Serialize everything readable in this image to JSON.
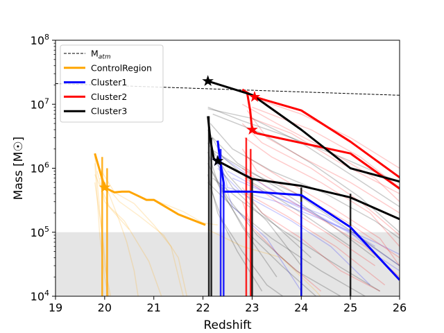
{
  "chart_data": {
    "type": "line",
    "title": "",
    "xlabel": "Redshift",
    "ylabel": "Mass [M☉]",
    "xlim": [
      19,
      26
    ],
    "ylim": [
      10000,
      100000000
    ],
    "yscale": "log",
    "grid": false,
    "legend_position": "top-left",
    "x_ticks": [
      19,
      20,
      21,
      22,
      23,
      24,
      25,
      26
    ],
    "x_tick_labels": [
      "19",
      "20",
      "21",
      "22",
      "23",
      "24",
      "25",
      "26"
    ],
    "y_ticks": [
      10000,
      100000,
      1000000,
      10000000,
      100000000
    ],
    "y_tick_labels": [
      {
        "base": "10",
        "exp": "4"
      },
      {
        "base": "10",
        "exp": "5"
      },
      {
        "base": "10",
        "exp": "6"
      },
      {
        "base": "10",
        "exp": "7"
      },
      {
        "base": "10",
        "exp": "8"
      }
    ],
    "shaded_region": {
      "x": [
        19,
        26
      ],
      "y": [
        10000,
        100000
      ],
      "color": "#e5e5e5"
    },
    "m_atm": {
      "name": "M",
      "subscript": "atm",
      "style": "dashed",
      "color": "#000000",
      "x": [
        19,
        26
      ],
      "y": [
        21000000,
        13800000
      ]
    },
    "groups": [
      {
        "name": "ControlRegion",
        "color": "#FFA500",
        "main": {
          "x": [
            19.8,
            20.0,
            20.2,
            20.35,
            20.5,
            20.65,
            20.85,
            21.0,
            21.5,
            22.05
          ],
          "y": [
            1700000,
            500000,
            420000,
            430000,
            430000,
            380000,
            320000,
            320000,
            190000,
            130000
          ]
        },
        "star": {
          "x": 20.0,
          "y": 500000
        },
        "faint": [
          {
            "x": [
              19.8,
              20.0,
              20.1,
              20.15
            ],
            "y": [
              1600000,
              30000,
              12000,
              8000
            ]
          },
          {
            "x": [
              19.8,
              19.9,
              20.0,
              20.1
            ],
            "y": [
              1200000,
              90000,
              20000,
              8000
            ]
          },
          {
            "x": [
              19.85,
              20.0,
              20.2,
              20.5
            ],
            "y": [
              900000,
              300000,
              200000,
              110000
            ]
          },
          {
            "x": [
              19.8,
              20.3,
              20.45,
              20.6,
              20.7
            ],
            "y": [
              1500000,
              150000,
              70000,
              25000,
              8000
            ]
          },
          {
            "x": [
              19.9,
              20.2,
              20.6,
              21.0,
              21.35,
              21.6
            ],
            "y": [
              1000000,
              420000,
              280000,
              130000,
              60000,
              10000
            ]
          },
          {
            "x": [
              19.8,
              20.1,
              20.4,
              20.9,
              21.2
            ],
            "y": [
              800000,
              250000,
              150000,
              35000,
              8000
            ]
          },
          {
            "x": [
              19.9,
              20.3,
              20.7,
              21.2,
              21.5,
              21.7
            ],
            "y": [
              700000,
              300000,
              180000,
              90000,
              40000,
              8000
            ]
          },
          {
            "x": [
              19.8,
              19.95,
              20.1
            ],
            "y": [
              600000,
              100000,
              8000
            ]
          },
          {
            "x": [
              21.0,
              21.6,
              22.0,
              22.3
            ],
            "y": [
              320000,
              210000,
              140000,
              130000
            ]
          },
          {
            "x": [
              22.1,
              22.8,
              23.6,
              24.3,
              24.5
            ],
            "y": [
              110000,
              60000,
              40000,
              12000,
              8000
            ]
          }
        ]
      },
      {
        "name": "Cluster1",
        "color": "#0000FF",
        "main": {
          "x": [
            22.3,
            22.35,
            22.42,
            22.42,
            23.0,
            24.0,
            25.0,
            26.0
          ],
          "y": [
            2700000,
            1300000,
            600000,
            430000,
            430000,
            380000,
            120000,
            18000
          ]
        },
        "star": {
          "x": 22.3,
          "y": 1300000
        },
        "faint": [
          {
            "x": [
              22.3,
              22.5,
              23.5,
              24.5,
              25.5,
              26.0
            ],
            "y": [
              2000000,
              500000,
              300000,
              150000,
              70000,
              45000
            ]
          },
          {
            "x": [
              22.4,
              23.0,
              24.0,
              25.0,
              25.6,
              26.0
            ],
            "y": [
              1500000,
              700000,
              250000,
              100000,
              40000,
              25000
            ]
          },
          {
            "x": [
              22.3,
              22.8,
              23.8,
              24.6,
              25.4
            ],
            "y": [
              1000000,
              400000,
              150000,
              60000,
              15000
            ]
          },
          {
            "x": [
              22.5,
              23.2,
              24.2,
              25.2,
              26.0
            ],
            "y": [
              900000,
              450000,
              200000,
              80000,
              30000
            ]
          },
          {
            "x": [
              22.3,
              22.6,
              23.3,
              24.0
            ],
            "y": [
              1200000,
              250000,
              80000,
              12000
            ]
          },
          {
            "x": [
              22.6,
              23.5,
              24.5,
              25.5
            ],
            "y": [
              700000,
              350000,
              180000,
              60000
            ]
          }
        ]
      },
      {
        "name": "Cluster2",
        "color": "#FF0000",
        "main": {
          "x": [
            22.8,
            22.9,
            22.96,
            23.0,
            23.1,
            25.0,
            26.0
          ],
          "y": [
            17000000,
            15000000,
            8000000,
            4000000,
            3500000,
            1700000,
            480000
          ]
        },
        "star": {
          "x": 23.0,
          "y": 4000000
        },
        "main2": {
          "x": [
            22.85,
            23.05,
            24.0,
            25.0,
            26.0
          ],
          "y": [
            16000000,
            13000000,
            8000000,
            2600000,
            720000
          ]
        },
        "star2": {
          "x": 23.05,
          "y": 13000000
        },
        "faint": [
          {
            "x": [
              22.8,
              23.5,
              24.5,
              25.5,
              26.0
            ],
            "y": [
              10000000,
              5000000,
              2000000,
              700000,
              300000
            ]
          },
          {
            "x": [
              22.9,
              23.3,
              24.0,
              25.0,
              26.0
            ],
            "y": [
              8000000,
              3000000,
              1500000,
              600000,
              200000
            ]
          },
          {
            "x": [
              22.8,
              23.2,
              24.2,
              25.2,
              26.0
            ],
            "y": [
              5000000,
              2500000,
              1000000,
              300000,
              90000
            ]
          },
          {
            "x": [
              23.0,
              23.8,
              24.8,
              26.0
            ],
            "y": [
              6000000,
              3500000,
              1200000,
              400000
            ]
          },
          {
            "x": [
              22.85,
              23.4,
              24.4,
              25.4,
              26.0
            ],
            "y": [
              3000000,
              1500000,
              600000,
              200000,
              60000
            ]
          },
          {
            "x": [
              22.8,
              23.1,
              23.9,
              24.9,
              26.0
            ],
            "y": [
              2000000,
              900000,
              400000,
              150000,
              40000
            ]
          },
          {
            "x": [
              22.9,
              23.6,
              24.6,
              25.6,
              26.0
            ],
            "y": [
              1500000,
              700000,
              250000,
              80000,
              30000
            ]
          },
          {
            "x": [
              22.8,
              23.3,
              24.3,
              25.3,
              26.0
            ],
            "y": [
              1000000,
              500000,
              180000,
              60000,
              20000
            ]
          },
          {
            "x": [
              22.85,
              23.5,
              24.5,
              25.5
            ],
            "y": [
              700000,
              300000,
              100000,
              30000
            ]
          },
          {
            "x": [
              22.8,
              23.2,
              24.0,
              24.8,
              25.6
            ],
            "y": [
              500000,
              200000,
              80000,
              25000,
              12000
            ]
          },
          {
            "x": [
              22.9,
              23.7,
              24.7,
              25.7
            ],
            "y": [
              400000,
              180000,
              60000,
              15000
            ]
          },
          {
            "x": [
              22.8,
              23.0,
              23.6,
              24.4
            ],
            "y": [
              300000,
              120000,
              40000,
              12000
            ]
          },
          {
            "x": [
              23.1,
              24.0,
              25.0,
              26.0
            ],
            "y": [
              12000000,
              7000000,
              3000000,
              1000000
            ]
          },
          {
            "x": [
              23.0,
              24.2,
              25.2,
              26.0
            ],
            "y": [
              9000000,
              4000000,
              1500000,
              500000
            ]
          }
        ]
      },
      {
        "name": "Cluster3",
        "color": "#000000",
        "main": {
          "x": [
            22.1,
            22.15,
            22.22,
            22.3,
            23.0,
            24.0,
            25.0,
            26.0
          ],
          "y": [
            6500000,
            2800000,
            1400000,
            1300000,
            680000,
            530000,
            350000,
            160000
          ]
        },
        "star": {
          "x": 22.3,
          "y": 1300000
        },
        "main2": {
          "x": [
            22.1,
            23.0,
            24.0,
            25.0,
            26.0
          ],
          "y": [
            23000000,
            14000000,
            4000000,
            1000000,
            620000
          ]
        },
        "star2": {
          "x": 22.1,
          "y": 23000000
        },
        "faint": [
          {
            "x": [
              22.1,
              22.8,
              23.8,
              24.8,
              26.0
            ],
            "y": [
              9000000,
              5500000,
              3000000,
              1500000,
              600000
            ]
          },
          {
            "x": [
              22.15,
              22.6,
              23.4,
              24.5,
              25.5,
              26.0
            ],
            "y": [
              5000000,
              2000000,
              900000,
              400000,
              150000,
              80000
            ]
          },
          {
            "x": [
              22.1,
              22.4,
              23.0,
              24.0,
              25.0
            ],
            "y": [
              4000000,
              1500000,
              600000,
              200000,
              60000
            ]
          },
          {
            "x": [
              22.2,
              22.7,
              23.5,
              24.5,
              25.5
            ],
            "y": [
              3000000,
              1200000,
              500000,
              150000,
              40000
            ]
          },
          {
            "x": [
              22.1,
              22.5,
              23.2,
              24.2
            ],
            "y": [
              2500000,
              800000,
              200000,
              40000
            ]
          },
          {
            "x": [
              22.15,
              22.9,
              23.9,
              24.9,
              26.0
            ],
            "y": [
              2000000,
              900000,
              400000,
              120000,
              30000
            ]
          },
          {
            "x": [
              22.1,
              22.3,
              22.8,
              23.5
            ],
            "y": [
              1800000,
              600000,
              120000,
              20000
            ]
          },
          {
            "x": [
              22.2,
              22.6,
              23.3,
              24.0
            ],
            "y": [
              1500000,
              500000,
              150000,
              30000
            ]
          },
          {
            "x": [
              22.1,
              22.4,
              22.9,
              23.6,
              24.3
            ],
            "y": [
              1200000,
              400000,
              100000,
              30000,
              10000
            ]
          },
          {
            "x": [
              22.15,
              22.5,
              23.1,
              23.9,
              24.8
            ],
            "y": [
              1000000,
              350000,
              90000,
              25000,
              10000
            ]
          },
          {
            "x": [
              22.1,
              22.3,
              22.7,
              23.2
            ],
            "y": [
              800000,
              200000,
              50000,
              12000
            ]
          },
          {
            "x": [
              22.2,
              22.8,
              23.6,
              24.6,
              25.6
            ],
            "y": [
              700000,
              300000,
              110000,
              35000,
              12000
            ]
          },
          {
            "x": [
              22.1,
              22.6,
              23.4,
              24.4,
              25.4
            ],
            "y": [
              600000,
              250000,
              80000,
              25000,
              9000
            ]
          },
          {
            "x": [
              22.15,
              22.4,
              22.8,
              23.3,
              23.8
            ],
            "y": [
              500000,
              150000,
              50000,
              15000,
              8000
            ]
          },
          {
            "x": [
              22.1,
              23.0,
              24.0,
              25.0,
              26.0
            ],
            "y": [
              8500000,
              6000000,
              2500000,
              800000,
              250000
            ]
          },
          {
            "x": [
              22.2,
              23.2,
              24.2,
              25.2,
              26.0
            ],
            "y": [
              7000000,
              3500000,
              1200000,
              350000,
              100000
            ]
          }
        ]
      }
    ],
    "vertical_drops": [
      {
        "x": 22.12,
        "color": "#000000",
        "y_top": 6500000
      },
      {
        "x": 22.17,
        "color": "#000000",
        "y_top": 3000000
      },
      {
        "x": 22.36,
        "color": "#0000FF",
        "y_top": 2000000
      },
      {
        "x": 22.42,
        "color": "#0000FF",
        "y_top": 500000
      },
      {
        "x": 22.88,
        "color": "#FF0000",
        "y_top": 3000000
      },
      {
        "x": 22.97,
        "color": "#FF0000",
        "y_top": 2000000
      },
      {
        "x": 23.0,
        "color": "#000000",
        "y_top": 700000
      },
      {
        "x": 24.0,
        "color": "#000000",
        "y_top": 500000
      },
      {
        "x": 24.0,
        "color": "#0000FF",
        "y_top": 300000
      },
      {
        "x": 25.0,
        "color": "#000000",
        "y_top": 400000
      },
      {
        "x": 19.95,
        "color": "#FFA500",
        "y_top": 1500000
      },
      {
        "x": 20.05,
        "color": "#FFA500",
        "y_top": 1000000
      }
    ]
  }
}
